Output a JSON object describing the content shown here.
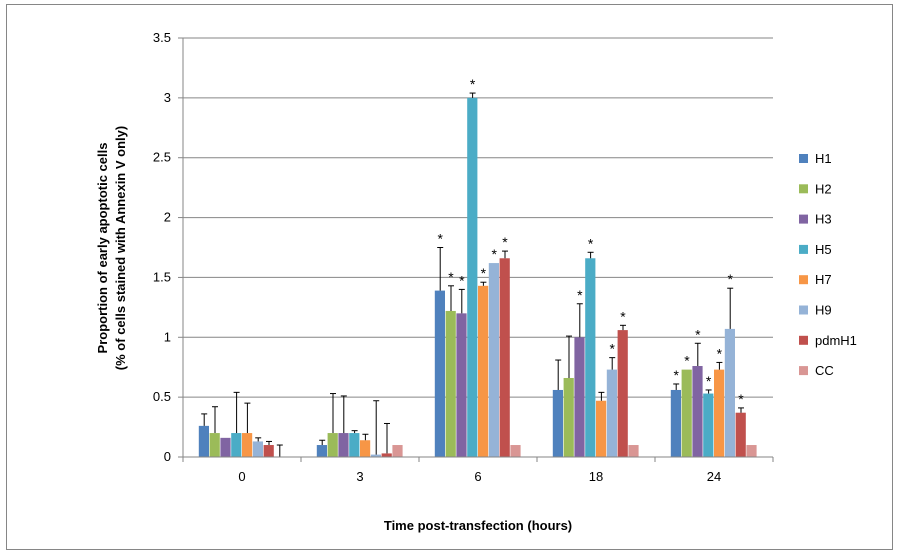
{
  "chart_data": {
    "type": "bar",
    "title": "",
    "xlabel": "Time post-transfection  (hours)",
    "ylabel_line1": "Proportion of early apoptotic cells",
    "ylabel_line2": "(% of cells stained with Annexin V only)",
    "ylim": [
      0,
      3.5
    ],
    "yticks": [
      "0",
      "0.5",
      "1",
      "1.5",
      "2",
      "2.5",
      "3",
      "3.5"
    ],
    "ytick_values": [
      0,
      0.5,
      1,
      1.5,
      2,
      2.5,
      3,
      3.5
    ],
    "grid": true,
    "legend_position": "right",
    "categories": [
      "0",
      "3",
      "6",
      "18",
      "24"
    ],
    "significance_marker": "*",
    "series": [
      {
        "name": "H1",
        "color": "#4F81BD",
        "values": [
          0.26,
          0.1,
          1.39,
          0.56,
          0.56
        ],
        "errors": [
          0.1,
          0.04,
          0.36,
          0.25,
          0.05
        ],
        "significant": [
          false,
          false,
          true,
          false,
          true
        ]
      },
      {
        "name": "H2",
        "color": "#9BBB59",
        "values": [
          0.2,
          0.2,
          1.22,
          0.66,
          0.73
        ],
        "errors": [
          0.22,
          0.33,
          0.21,
          0.35,
          0.0
        ],
        "significant": [
          false,
          false,
          true,
          false,
          true
        ]
      },
      {
        "name": "H3",
        "color": "#8064A2",
        "values": [
          0.16,
          0.2,
          1.2,
          1.0,
          0.76
        ],
        "errors": [
          0.0,
          0.31,
          0.2,
          0.28,
          0.19
        ],
        "significant": [
          false,
          false,
          true,
          true,
          true
        ]
      },
      {
        "name": "H5",
        "color": "#4BACC6",
        "values": [
          0.2,
          0.2,
          3.0,
          1.66,
          0.53
        ],
        "errors": [
          0.34,
          0.02,
          0.04,
          0.05,
          0.03
        ],
        "significant": [
          false,
          false,
          true,
          true,
          true
        ]
      },
      {
        "name": "H7",
        "color": "#F79646",
        "values": [
          0.2,
          0.14,
          1.43,
          0.47,
          0.73
        ],
        "errors": [
          0.25,
          0.05,
          0.03,
          0.07,
          0.06
        ],
        "significant": [
          false,
          false,
          true,
          false,
          true
        ]
      },
      {
        "name": "H9",
        "color": "#95B3D7",
        "values": [
          0.13,
          0.02,
          1.62,
          0.73,
          1.07
        ],
        "errors": [
          0.03,
          0.45,
          0.0,
          0.1,
          0.34
        ],
        "significant": [
          false,
          false,
          true,
          true,
          true
        ]
      },
      {
        "name": "pdmH1",
        "color": "#C0504D",
        "values": [
          0.1,
          0.03,
          1.66,
          1.06,
          0.37
        ],
        "errors": [
          0.03,
          0.25,
          0.06,
          0.04,
          0.04
        ],
        "significant": [
          false,
          false,
          true,
          true,
          true
        ]
      },
      {
        "name": "CC",
        "color": "#D99694",
        "values": [
          0.0,
          0.1,
          0.1,
          0.1,
          0.1
        ],
        "errors": [
          0.1,
          0.0,
          0.0,
          0.0,
          0.0
        ],
        "significant": [
          false,
          false,
          false,
          false,
          false
        ]
      }
    ]
  }
}
